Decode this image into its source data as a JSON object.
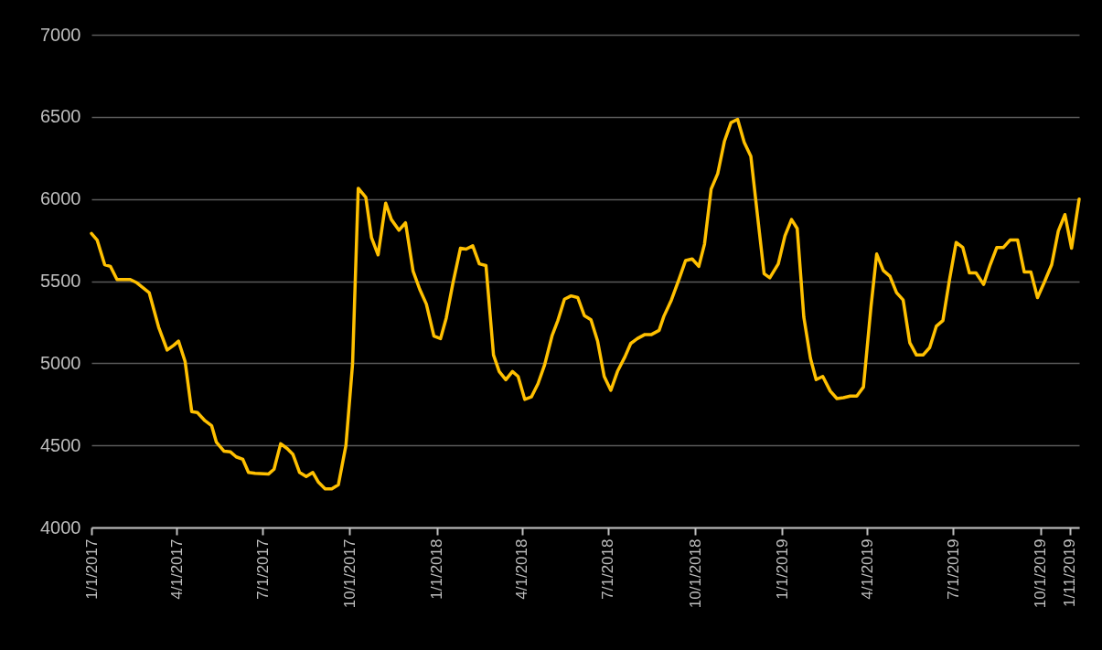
{
  "chart_data": {
    "type": "line",
    "x": [
      "2017-01-01",
      "2017-01-07",
      "2017-01-15",
      "2017-01-21",
      "2017-01-28",
      "2017-02-11",
      "2017-02-18",
      "2017-03-03",
      "2017-03-13",
      "2017-03-22",
      "2017-03-29",
      "2017-04-03",
      "2017-04-10",
      "2017-04-17",
      "2017-04-23",
      "2017-05-01",
      "2017-05-08",
      "2017-05-13",
      "2017-05-21",
      "2017-05-28",
      "2017-06-03",
      "2017-06-10",
      "2017-06-16",
      "2017-06-23",
      "2017-07-07",
      "2017-07-13",
      "2017-07-20",
      "2017-07-27",
      "2017-08-02",
      "2017-08-09",
      "2017-08-16",
      "2017-08-23",
      "2017-08-29",
      "2017-09-05",
      "2017-09-12",
      "2017-09-19",
      "2017-09-27",
      "2017-10-04",
      "2017-10-10",
      "2017-10-18",
      "2017-10-24",
      "2017-10-31",
      "2017-11-08",
      "2017-11-14",
      "2017-11-22",
      "2017-11-29",
      "2017-12-07",
      "2017-12-14",
      "2017-12-21",
      "2017-12-29",
      "2018-01-05",
      "2018-01-11",
      "2018-01-18",
      "2018-01-26",
      "2018-02-01",
      "2018-02-08",
      "2018-02-15",
      "2018-02-22",
      "2018-03-02",
      "2018-03-08",
      "2018-03-15",
      "2018-03-22",
      "2018-03-28",
      "2018-04-04",
      "2018-04-11",
      "2018-04-18",
      "2018-04-25",
      "2018-05-03",
      "2018-05-09",
      "2018-05-16",
      "2018-05-23",
      "2018-05-30",
      "2018-06-06",
      "2018-06-13",
      "2018-06-20",
      "2018-06-27",
      "2018-07-04",
      "2018-07-11",
      "2018-07-19",
      "2018-07-25",
      "2018-08-01",
      "2018-08-09",
      "2018-08-16",
      "2018-08-24",
      "2018-08-29",
      "2018-09-06",
      "2018-09-14",
      "2018-09-21",
      "2018-09-28",
      "2018-10-05",
      "2018-10-11",
      "2018-10-18",
      "2018-10-25",
      "2018-11-01",
      "2018-11-08",
      "2018-11-15",
      "2018-11-22",
      "2018-11-29",
      "2018-12-06",
      "2018-12-13",
      "2018-12-19",
      "2018-12-28",
      "2019-01-04",
      "2019-01-11",
      "2019-01-17",
      "2019-01-24",
      "2019-01-31",
      "2019-02-06",
      "2019-02-13",
      "2019-02-21",
      "2019-02-28",
      "2019-03-07",
      "2019-03-14",
      "2019-03-21",
      "2019-03-28",
      "2019-04-05",
      "2019-04-11",
      "2019-04-18",
      "2019-04-25",
      "2019-05-02",
      "2019-05-09",
      "2019-05-16",
      "2019-05-23",
      "2019-05-30",
      "2019-06-06",
      "2019-06-13",
      "2019-06-20",
      "2019-06-27",
      "2019-07-04",
      "2019-07-11",
      "2019-07-18",
      "2019-07-25",
      "2019-08-02",
      "2019-08-09",
      "2019-08-16",
      "2019-08-23",
      "2019-08-30",
      "2019-09-07",
      "2019-09-14",
      "2019-09-21",
      "2019-09-28",
      "2019-10-05",
      "2019-10-13",
      "2019-10-20",
      "2019-10-27",
      "2019-11-03",
      "2019-11-11"
    ],
    "series": [
      {
        "color": "#ffc000",
        "values": [
          5790,
          5750,
          5600,
          5590,
          5510,
          5510,
          5490,
          5430,
          5220,
          5080,
          5110,
          5135,
          5010,
          4705,
          4700,
          4650,
          4620,
          4520,
          4465,
          4460,
          4430,
          4415,
          4335,
          4330,
          4325,
          4355,
          4510,
          4480,
          4445,
          4335,
          4310,
          4335,
          4275,
          4235,
          4235,
          4260,
          4500,
          4995,
          6065,
          6010,
          5765,
          5660,
          5975,
          5875,
          5810,
          5855,
          5560,
          5450,
          5360,
          5165,
          5150,
          5275,
          5485,
          5700,
          5695,
          5715,
          5605,
          5595,
          5050,
          4950,
          4900,
          4950,
          4920,
          4780,
          4795,
          4875,
          4990,
          5170,
          5260,
          5390,
          5410,
          5400,
          5290,
          5265,
          5135,
          4920,
          4835,
          4950,
          5040,
          5120,
          5150,
          5175,
          5175,
          5200,
          5285,
          5385,
          5510,
          5625,
          5635,
          5590,
          5725,
          6060,
          6155,
          6350,
          6465,
          6485,
          6345,
          6260,
          5900,
          5545,
          5520,
          5605,
          5775,
          5875,
          5820,
          5280,
          5030,
          4900,
          4920,
          4830,
          4785,
          4790,
          4800,
          4800,
          4855,
          5345,
          5665,
          5565,
          5530,
          5430,
          5385,
          5125,
          5050,
          5050,
          5095,
          5225,
          5260,
          5510,
          5735,
          5705,
          5550,
          5550,
          5480,
          5600,
          5705,
          5705,
          5750,
          5750,
          5555,
          5555,
          5400,
          5490,
          5600,
          5805,
          5905,
          5700,
          6000
        ]
      }
    ],
    "xlim": [
      "2017-01-01",
      "2019-11-11"
    ],
    "xticks": [
      {
        "value": "2017-01-01",
        "label": "1/1/2017"
      },
      {
        "value": "2017-04-01",
        "label": "4/1/2017"
      },
      {
        "value": "2017-07-01",
        "label": "7/1/2017"
      },
      {
        "value": "2017-10-01",
        "label": "10/1/2017"
      },
      {
        "value": "2018-01-01",
        "label": "1/1/2018"
      },
      {
        "value": "2018-04-01",
        "label": "4/1/2018"
      },
      {
        "value": "2018-07-01",
        "label": "7/1/2018"
      },
      {
        "value": "2018-10-01",
        "label": "10/1/2018"
      },
      {
        "value": "2019-01-01",
        "label": "1/1/2019"
      },
      {
        "value": "2019-04-01",
        "label": "4/1/2019"
      },
      {
        "value": "2019-07-01",
        "label": "7/1/2019"
      },
      {
        "value": "2019-10-01",
        "label": "10/1/2019"
      },
      {
        "value": "2019-11-01",
        "label": "1/11/2019"
      }
    ],
    "ylim": [
      4000,
      7000
    ],
    "yticks": [
      4000,
      4500,
      5000,
      5500,
      6000,
      6500,
      7000
    ],
    "grid": "y",
    "marker": "none",
    "line_style": "solid"
  }
}
